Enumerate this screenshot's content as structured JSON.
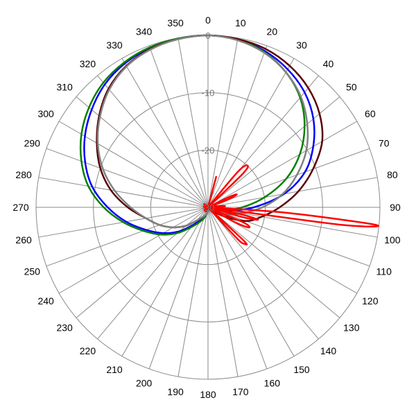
{
  "chart_data": {
    "type": "polar",
    "title": "",
    "angle_ticks": [
      "0",
      "10",
      "20",
      "30",
      "40",
      "50",
      "60",
      "70",
      "80",
      "90",
      "100",
      "110",
      "120",
      "130",
      "140",
      "150",
      "160",
      "170",
      "180",
      "190",
      "200",
      "210",
      "220",
      "230",
      "240",
      "250",
      "260",
      "270",
      "280",
      "290",
      "300",
      "310",
      "320",
      "330",
      "340",
      "350"
    ],
    "radial_ticks": [
      "0",
      "-10",
      "-20",
      "-30"
    ],
    "radial_range": [
      -30,
      0
    ],
    "angle_direction": "clockwise",
    "zero_at": "top",
    "grid": true,
    "legend": "none",
    "series": [
      {
        "color": "#0000ff",
        "points": [
          [
            0,
            0
          ],
          [
            10,
            -0.3
          ],
          [
            20,
            -1.0
          ],
          [
            30,
            -2.2
          ],
          [
            40,
            -3.8
          ],
          [
            50,
            -6.0
          ],
          [
            60,
            -8.8
          ],
          [
            70,
            -12.0
          ],
          [
            80,
            -16.5
          ],
          [
            90,
            -22.0
          ],
          [
            100,
            -26.5
          ],
          [
            110,
            -28.5
          ],
          [
            120,
            -29.5
          ],
          [
            130,
            -30
          ],
          [
            140,
            -30
          ],
          [
            150,
            -30
          ],
          [
            160,
            -30
          ],
          [
            170,
            -29.5
          ],
          [
            180,
            -29.5
          ],
          [
            190,
            -29
          ],
          [
            200,
            -28
          ],
          [
            210,
            -27.5
          ],
          [
            220,
            -26
          ],
          [
            230,
            -23.5
          ],
          [
            240,
            -21
          ],
          [
            250,
            -18.5
          ],
          [
            260,
            -15.5
          ],
          [
            270,
            -12.5
          ],
          [
            280,
            -9.5
          ],
          [
            290,
            -7.2
          ],
          [
            300,
            -5.2
          ],
          [
            310,
            -3.5
          ],
          [
            320,
            -2.0
          ],
          [
            330,
            -1.0
          ],
          [
            340,
            -0.4
          ],
          [
            350,
            -0.1
          ],
          [
            360,
            0
          ]
        ]
      },
      {
        "color": "#008000",
        "points": [
          [
            0,
            0
          ],
          [
            10,
            -0.3
          ],
          [
            20,
            -1.2
          ],
          [
            30,
            -2.8
          ],
          [
            40,
            -5.0
          ],
          [
            50,
            -8.0
          ],
          [
            60,
            -11.5
          ],
          [
            70,
            -15.5
          ],
          [
            80,
            -20.0
          ],
          [
            90,
            -24.0
          ],
          [
            100,
            -27.0
          ],
          [
            110,
            -29.0
          ],
          [
            120,
            -29.5
          ],
          [
            130,
            -30
          ],
          [
            140,
            -30
          ],
          [
            150,
            -30
          ],
          [
            160,
            -30
          ],
          [
            170,
            -29.5
          ],
          [
            180,
            -29.5
          ],
          [
            190,
            -29
          ],
          [
            200,
            -28
          ],
          [
            210,
            -27
          ],
          [
            220,
            -25.5
          ],
          [
            230,
            -23
          ],
          [
            240,
            -20.5
          ],
          [
            250,
            -18
          ],
          [
            260,
            -15
          ],
          [
            270,
            -11.8
          ],
          [
            280,
            -8.8
          ],
          [
            290,
            -6.5
          ],
          [
            300,
            -4.5
          ],
          [
            310,
            -2.9
          ],
          [
            320,
            -1.6
          ],
          [
            330,
            -0.8
          ],
          [
            340,
            -0.3
          ],
          [
            350,
            -0.1
          ],
          [
            360,
            0
          ]
        ]
      },
      {
        "color": "#5a0000",
        "points": [
          [
            0,
            0
          ],
          [
            10,
            -0.2
          ],
          [
            20,
            -0.6
          ],
          [
            30,
            -1.5
          ],
          [
            40,
            -2.8
          ],
          [
            50,
            -4.6
          ],
          [
            60,
            -7.0
          ],
          [
            70,
            -10.5
          ],
          [
            80,
            -14.0
          ],
          [
            90,
            -17.5
          ],
          [
            100,
            -20.5
          ],
          [
            110,
            -23.0
          ],
          [
            120,
            -27.0
          ],
          [
            130,
            -29.5
          ],
          [
            140,
            -30
          ],
          [
            150,
            -30
          ],
          [
            160,
            -30
          ],
          [
            170,
            -29.5
          ],
          [
            180,
            -29.5
          ],
          [
            190,
            -29
          ],
          [
            200,
            -28.5
          ],
          [
            210,
            -28
          ],
          [
            220,
            -27
          ],
          [
            230,
            -25
          ],
          [
            240,
            -23
          ],
          [
            250,
            -21
          ],
          [
            260,
            -19
          ],
          [
            270,
            -16
          ],
          [
            280,
            -12.8
          ],
          [
            290,
            -10
          ],
          [
            300,
            -7.6
          ],
          [
            310,
            -5.2
          ],
          [
            320,
            -3.0
          ],
          [
            330,
            -1.5
          ],
          [
            340,
            -0.6
          ],
          [
            350,
            -0.2
          ],
          [
            360,
            0
          ]
        ]
      },
      {
        "color": "#808080",
        "points": [
          [
            0,
            0
          ],
          [
            10,
            -0.4
          ],
          [
            20,
            -1.3
          ],
          [
            30,
            -2.8
          ],
          [
            40,
            -4.8
          ],
          [
            50,
            -7.4
          ],
          [
            60,
            -10.2
          ],
          [
            70,
            -13.5
          ],
          [
            80,
            -16.8
          ],
          [
            90,
            -20.5
          ],
          [
            100,
            -24.0
          ],
          [
            110,
            -26.5
          ],
          [
            120,
            -28.5
          ],
          [
            130,
            -29.5
          ],
          [
            140,
            -30
          ],
          [
            150,
            -30
          ],
          [
            160,
            -30
          ],
          [
            170,
            -29.5
          ],
          [
            180,
            -29.5
          ],
          [
            190,
            -29
          ],
          [
            200,
            -28.5
          ],
          [
            210,
            -28
          ],
          [
            220,
            -27
          ],
          [
            230,
            -25
          ],
          [
            240,
            -23
          ],
          [
            250,
            -21
          ],
          [
            260,
            -19
          ],
          [
            270,
            -16.5
          ],
          [
            280,
            -13.5
          ],
          [
            290,
            -10.5
          ],
          [
            300,
            -7.8
          ],
          [
            310,
            -5.4
          ],
          [
            320,
            -3.2
          ],
          [
            330,
            -1.6
          ],
          [
            340,
            -0.7
          ],
          [
            350,
            -0.2
          ],
          [
            360,
            0
          ]
        ]
      },
      {
        "color": "#ff0000",
        "points": [
          [
            0,
            -30
          ],
          [
            12,
            -30
          ],
          [
            15,
            -24.5
          ],
          [
            18,
            -30
          ],
          [
            35,
            -30
          ],
          [
            40,
            -22.0
          ],
          [
            43,
            -20.0
          ],
          [
            46,
            -21.5
          ],
          [
            50,
            -30
          ],
          [
            60,
            -30
          ],
          [
            64,
            -26.0
          ],
          [
            66,
            -24.5
          ],
          [
            69,
            -26.5
          ],
          [
            72,
            -30
          ],
          [
            78,
            -30
          ],
          [
            82,
            -28.5
          ],
          [
            86,
            -27.0
          ],
          [
            88,
            -28.5
          ],
          [
            90,
            -30
          ],
          [
            94,
            -16.0
          ],
          [
            96,
            -0.5
          ],
          [
            97.5,
            -7.0
          ],
          [
            100,
            -30
          ],
          [
            102,
            -24.0
          ],
          [
            104,
            -21.0
          ],
          [
            106,
            -24.0
          ],
          [
            109,
            -30
          ],
          [
            113,
            -23.5
          ],
          [
            116,
            -22.0
          ],
          [
            119,
            -24.5
          ],
          [
            122,
            -30
          ],
          [
            130,
            -30
          ],
          [
            133,
            -21.5
          ],
          [
            135,
            -21.0
          ],
          [
            137,
            -22.5
          ],
          [
            140,
            -30
          ],
          [
            360,
            -30
          ]
        ]
      }
    ]
  }
}
